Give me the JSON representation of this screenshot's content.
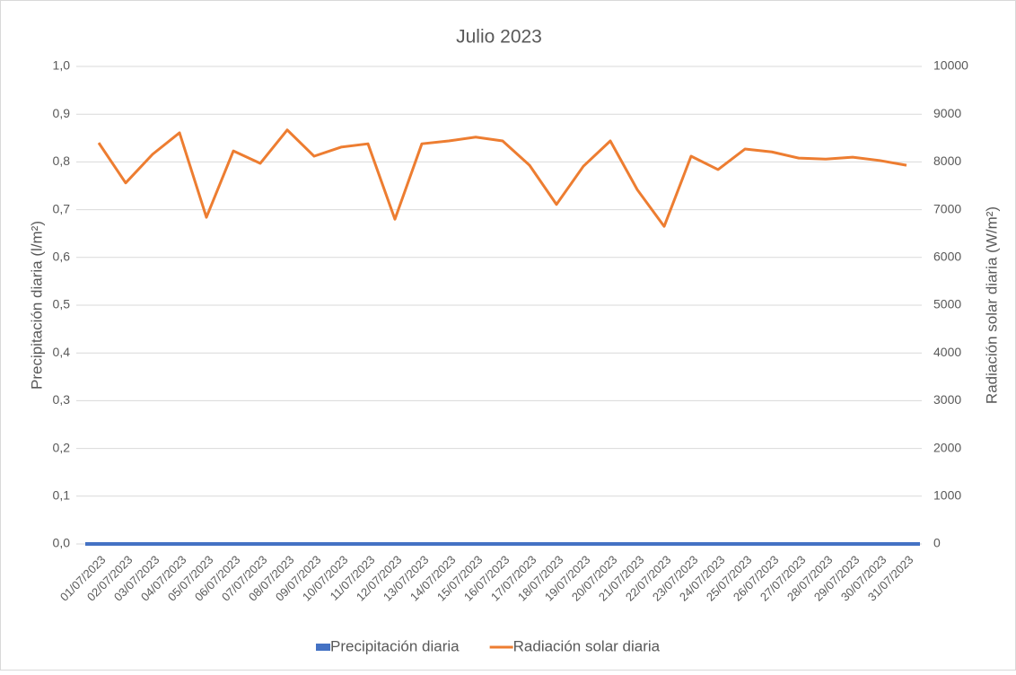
{
  "chart_data": {
    "type": "bar_line",
    "title": "Julio 2023",
    "y_label": "Precipitación diaria (l/m²)",
    "y2_label": "Radiación solar diaria (W/m²)",
    "categories": [
      "01/07/2023",
      "02/07/2023",
      "03/07/2023",
      "04/07/2023",
      "05/07/2023",
      "06/07/2023",
      "07/07/2023",
      "08/07/2023",
      "09/07/2023",
      "10/07/2023",
      "11/07/2023",
      "12/07/2023",
      "13/07/2023",
      "14/07/2023",
      "15/07/2023",
      "16/07/2023",
      "17/07/2023",
      "18/07/2023",
      "19/07/2023",
      "20/07/2023",
      "21/07/2023",
      "22/07/2023",
      "23/07/2023",
      "24/07/2023",
      "25/07/2023",
      "26/07/2023",
      "27/07/2023",
      "28/07/2023",
      "29/07/2023",
      "30/07/2023",
      "31/07/2023"
    ],
    "series": [
      {
        "name": "Precipitación diaria",
        "type": "bar",
        "color": "#4472c4",
        "axis": "y",
        "values": [
          0,
          0,
          0,
          0,
          0,
          0,
          0,
          0,
          0,
          0,
          0,
          0,
          0,
          0,
          0,
          0,
          0,
          0,
          0,
          0,
          0,
          0,
          0,
          0,
          0,
          0,
          0,
          0,
          0,
          0,
          0
        ]
      },
      {
        "name": "Radiación solar diaria",
        "type": "line",
        "color": "#ed7d31",
        "axis": "y2",
        "values": [
          8400,
          7560,
          8160,
          8610,
          6840,
          8230,
          7970,
          8670,
          8120,
          8310,
          8380,
          6800,
          8380,
          8440,
          8520,
          8440,
          7930,
          7110,
          7910,
          8440,
          7420,
          6650,
          8120,
          7840,
          8270,
          8210,
          8080,
          8060,
          8100,
          8030,
          7930
        ]
      }
    ],
    "ylim": [
      0,
      1
    ],
    "yticks": [
      {
        "value": 0,
        "label": "0,0"
      },
      {
        "value": 0.1,
        "label": "0,1"
      },
      {
        "value": 0.2,
        "label": "0,2"
      },
      {
        "value": 0.3,
        "label": "0,3"
      },
      {
        "value": 0.4,
        "label": "0,4"
      },
      {
        "value": 0.5,
        "label": "0,5"
      },
      {
        "value": 0.6,
        "label": "0,6"
      },
      {
        "value": 0.7,
        "label": "0,7"
      },
      {
        "value": 0.8,
        "label": "0,8"
      },
      {
        "value": 0.9,
        "label": "0,9"
      },
      {
        "value": 1,
        "label": "1,0"
      }
    ],
    "y2lim": [
      0,
      10000
    ],
    "y2ticks": [
      0,
      1000,
      2000,
      3000,
      4000,
      5000,
      6000,
      7000,
      8000,
      9000,
      10000
    ],
    "grid": true,
    "legend": "bottom"
  }
}
